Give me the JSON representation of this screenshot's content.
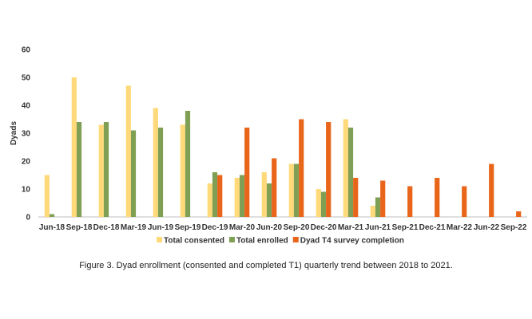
{
  "chart_data": {
    "type": "bar",
    "ylabel": "Dyads",
    "ylim": [
      0,
      60
    ],
    "yticks": [
      0,
      10,
      20,
      30,
      40,
      50,
      60
    ],
    "grid": false,
    "legend_position": "bottom",
    "categories": [
      "Jun-18",
      "Sep-18",
      "Dec-18",
      "Mar-19",
      "Jun-19",
      "Sep-19",
      "Dec-19",
      "Mar-20",
      "Jun-20",
      "Sep-20",
      "Dec-20",
      "Mar-21",
      "Jun-21",
      "Sep-21",
      "Dec-21",
      "Mar-22",
      "Jun-22",
      "Sep-22"
    ],
    "series": [
      {
        "name": "Total  consented",
        "color": "#FFD97A",
        "values": [
          15,
          50,
          33,
          47,
          39,
          33,
          12,
          14,
          16,
          19,
          10,
          35,
          4,
          null,
          null,
          null,
          null,
          null
        ]
      },
      {
        "name": "Total enrolled",
        "color": "#7F9F55",
        "values": [
          1,
          34,
          34,
          31,
          32,
          38,
          16,
          15,
          12,
          19,
          9,
          32,
          7,
          null,
          null,
          null,
          null,
          null
        ]
      },
      {
        "name": "Dyad T4 survey completion",
        "color": "#E8651A",
        "values": [
          null,
          null,
          null,
          null,
          null,
          null,
          15,
          32,
          21,
          35,
          34,
          14,
          13,
          11,
          14,
          11,
          19,
          2
        ]
      }
    ]
  },
  "caption": "Figure 3. Dyad enrollment (consented and completed T1) quarterly trend between 2018 to 2021."
}
